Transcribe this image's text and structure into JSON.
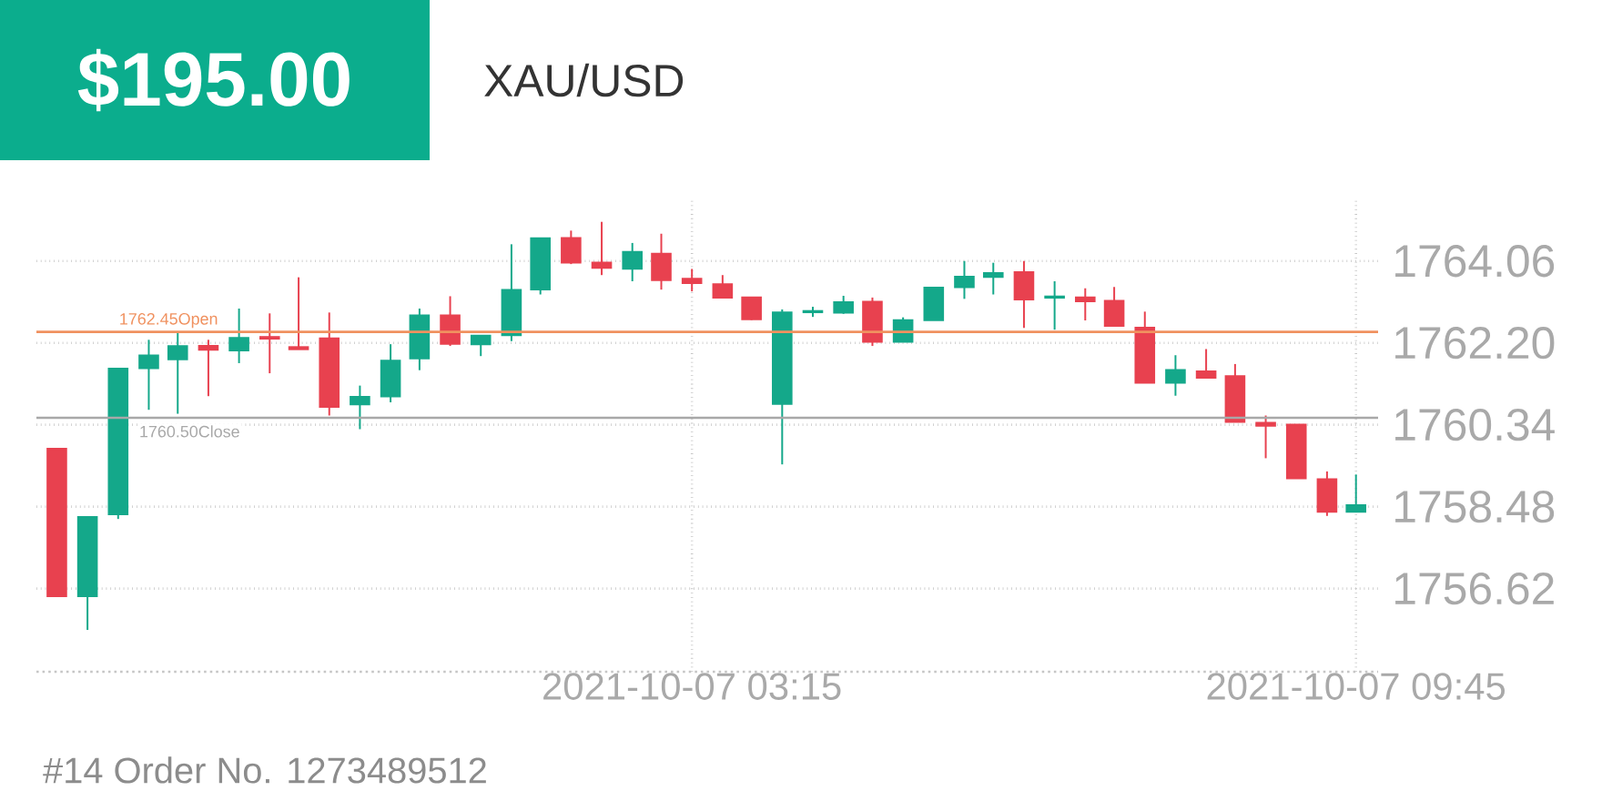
{
  "chart_data": {
    "type": "candlestick",
    "title": "$195.00",
    "subtitle": "XAU/USD",
    "annotations": [
      "#14    Order No. 1273489512"
    ],
    "x": [
      "2021-10-06T21:02",
      "2021-10-06T21:20",
      "2021-10-06T21:38",
      "2021-10-06T21:56",
      "2021-10-06T22:13",
      "2021-10-06T22:31",
      "2021-10-06T22:49",
      "2021-10-06T23:07",
      "2021-10-06T23:24",
      "2021-10-06T23:42",
      "2021-10-07T00:00",
      "2021-10-07T00:18",
      "2021-10-07T00:35",
      "2021-10-07T00:53",
      "2021-10-07T01:11",
      "2021-10-07T01:29",
      "2021-10-07T01:46",
      "2021-10-07T02:04",
      "2021-10-07T02:22",
      "2021-10-07T02:40",
      "2021-10-07T02:57",
      "2021-10-07T03:15",
      "2021-10-07T03:33",
      "2021-10-07T03:50",
      "2021-10-07T04:08",
      "2021-10-07T04:26",
      "2021-10-07T04:44",
      "2021-10-07T05:01",
      "2021-10-07T05:19",
      "2021-10-07T05:37",
      "2021-10-07T05:55",
      "2021-10-07T06:12",
      "2021-10-07T06:30",
      "2021-10-07T06:48",
      "2021-10-07T07:06",
      "2021-10-07T07:23",
      "2021-10-07T07:41",
      "2021-10-07T07:59",
      "2021-10-07T08:17",
      "2021-10-07T08:34",
      "2021-10-07T08:52",
      "2021-10-07T09:10",
      "2021-10-07T09:28",
      "2021-10-07T09:45"
    ],
    "ohlc": [
      [
        1759.79,
        1759.79,
        1756.45,
        1756.45
      ],
      [
        1756.45,
        1758.24,
        1755.68,
        1758.24
      ],
      [
        1758.31,
        1761.61,
        1758.2,
        1761.61
      ],
      [
        1761.63,
        1762.27,
        1760.68,
        1761.91
      ],
      [
        1761.83,
        1762.43,
        1760.59,
        1762.12
      ],
      [
        1762.13,
        1762.27,
        1760.99,
        1762.05
      ],
      [
        1762.03,
        1762.98,
        1761.74,
        1762.31
      ],
      [
        1762.33,
        1762.87,
        1761.51,
        1762.3
      ],
      [
        1762.1,
        1763.69,
        1762.06,
        1762.06
      ],
      [
        1762.3,
        1762.89,
        1760.55,
        1760.75
      ],
      [
        1760.81,
        1761.23,
        1760.24,
        1760.97
      ],
      [
        1760.99,
        1762.17,
        1760.85,
        1761.79
      ],
      [
        1761.85,
        1762.98,
        1761.58,
        1762.82
      ],
      [
        1762.82,
        1763.26,
        1762.13,
        1762.18
      ],
      [
        1762.17,
        1762.36,
        1761.9,
        1762.36
      ],
      [
        1762.38,
        1764.44,
        1762.24,
        1763.4
      ],
      [
        1763.42,
        1764.57,
        1763.3,
        1764.57
      ],
      [
        1764.58,
        1764.75,
        1763.99,
        1764.03
      ],
      [
        1764.02,
        1764.95,
        1763.74,
        1763.91
      ],
      [
        1763.89,
        1764.47,
        1763.6,
        1764.26
      ],
      [
        1764.22,
        1764.68,
        1763.41,
        1763.63
      ],
      [
        1763.65,
        1763.88,
        1763.37,
        1763.56
      ],
      [
        1763.53,
        1763.74,
        1763.23,
        1763.23
      ],
      [
        1763.23,
        1763.23,
        1762.72,
        1762.74
      ],
      [
        1760.82,
        1762.96,
        1759.44,
        1762.89
      ],
      [
        1762.9,
        1763.02,
        1762.79,
        1762.92
      ],
      [
        1762.89,
        1763.27,
        1762.86,
        1763.12
      ],
      [
        1763.13,
        1763.23,
        1762.13,
        1762.23
      ],
      [
        1762.23,
        1762.78,
        1762.23,
        1762.71
      ],
      [
        1762.72,
        1763.45,
        1762.72,
        1763.45
      ],
      [
        1763.47,
        1764.06,
        1763.2,
        1763.7
      ],
      [
        1763.7,
        1764.02,
        1763.3,
        1763.78
      ],
      [
        1763.8,
        1764.06,
        1762.54,
        1763.19
      ],
      [
        1763.23,
        1763.6,
        1762.5,
        1763.25
      ],
      [
        1763.23,
        1763.44,
        1762.71,
        1763.15
      ],
      [
        1763.15,
        1763.47,
        1762.59,
        1762.59
      ],
      [
        1762.54,
        1762.91,
        1761.3,
        1761.3
      ],
      [
        1761.3,
        1761.92,
        1761.0,
        1761.58
      ],
      [
        1761.55,
        1762.06,
        1761.41,
        1761.41
      ],
      [
        1761.44,
        1761.72,
        1760.41,
        1760.41
      ],
      [
        1760.38,
        1760.55,
        1759.58,
        1760.32
      ],
      [
        1760.34,
        1760.34,
        1759.13,
        1759.13
      ],
      [
        1759.1,
        1759.28,
        1758.27,
        1758.37
      ],
      [
        1758.37,
        1759.21,
        1758.37,
        1758.51
      ]
    ],
    "colors": [
      "#e8414f",
      "#14a88a",
      "#14a88a",
      "#14a88a",
      "#14a88a",
      "#e8414f",
      "#14a88a",
      "#e8414f",
      "#e8414f",
      "#e8414f",
      "#14a88a",
      "#14a88a",
      "#14a88a",
      "#e8414f",
      "#14a88a",
      "#14a88a",
      "#14a88a",
      "#e8414f",
      "#e8414f",
      "#14a88a",
      "#e8414f",
      "#e8414f",
      "#e8414f",
      "#e8414f",
      "#14a88a",
      "#14a88a",
      "#14a88a",
      "#e8414f",
      "#14a88a",
      "#14a88a",
      "#14a88a",
      "#14a88a",
      "#e8414f",
      "#14a88a",
      "#e8414f",
      "#e8414f",
      "#e8414f",
      "#14a88a",
      "#e8414f",
      "#e8414f",
      "#e8414f",
      "#e8414f",
      "#e8414f",
      "#14a88a"
    ],
    "xlim": [
      "2021-10-06T20:50",
      "2021-10-07T09:58"
    ],
    "xticks": [
      {
        "value": "2021-10-07T03:15",
        "label": "2021-10-07 03:15"
      },
      {
        "value": "2021-10-07T09:45",
        "label": "2021-10-07 09:45"
      }
    ],
    "ylim": [
      1754.73,
      1765.44
    ],
    "yticks": [
      1764.06,
      {
        "value": 1762.2,
        "label": "1762.20"
      },
      1760.34,
      1758.48,
      1756.62
    ],
    "ref_lines": [
      {
        "axis": "y",
        "value": 1762.45,
        "label": "1762.45Open",
        "color": "#f0915f"
      },
      {
        "axis": "y",
        "value": 1760.5,
        "label": "1760.50Close",
        "color": "#a8a8a8"
      }
    ],
    "grid": true
  }
}
